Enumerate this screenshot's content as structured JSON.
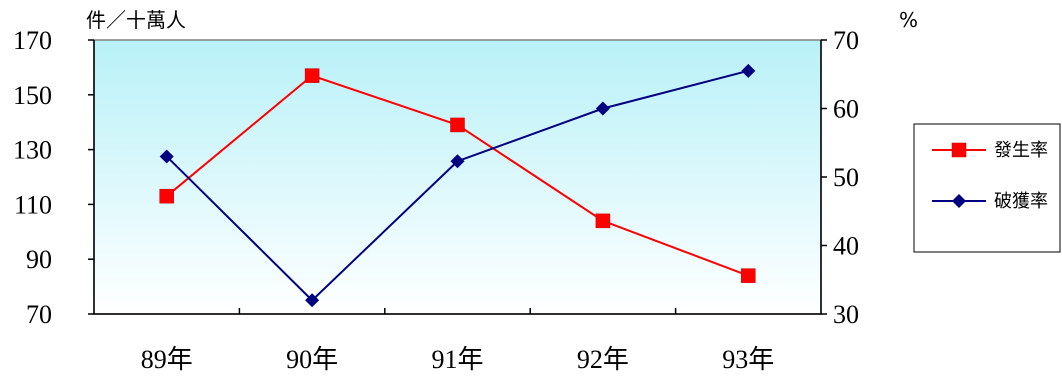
{
  "chart_data": {
    "type": "line",
    "categories": [
      "89年",
      "90年",
      "91年",
      "92年",
      "93年"
    ],
    "series": [
      {
        "name": "發生率",
        "axis": "left",
        "color": "#ff0000",
        "marker": "square",
        "values": [
          113,
          157,
          139,
          104,
          84
        ]
      },
      {
        "name": "破獲率",
        "axis": "right",
        "color": "#000080",
        "marker": "diamond",
        "values": [
          53,
          32,
          52.3,
          60,
          65.5
        ]
      }
    ],
    "y_left": {
      "label": "件／十萬人",
      "ylim": [
        70,
        170
      ],
      "ticks": [
        "70",
        "90",
        "110",
        "130",
        "150",
        "170"
      ]
    },
    "y_right": {
      "label": "%",
      "ylim": [
        30,
        70
      ],
      "ticks": [
        "30",
        "40",
        "50",
        "60",
        "70"
      ]
    },
    "plot_background": "gradient light cyan",
    "grid": false,
    "legend_position": "right"
  }
}
